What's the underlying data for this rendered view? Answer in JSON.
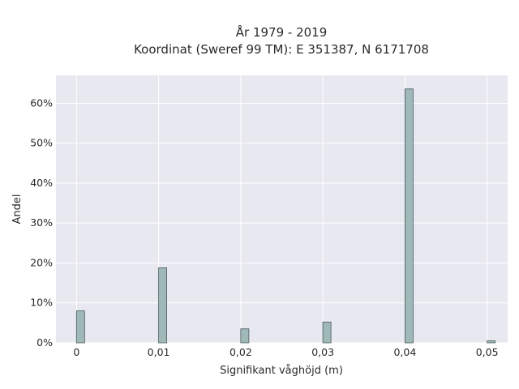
{
  "chart_data": {
    "type": "bar",
    "title": "År 1979 - 2019",
    "subtitle": "Koordinat (Sweref 99 TM): E 351387, N 6171708",
    "xlabel": "Signifikant våghöjd (m)",
    "ylabel": "Andel",
    "x": [
      0,
      0.01,
      0.02,
      0.03,
      0.04,
      0.05
    ],
    "values": [
      8.0,
      18.8,
      3.5,
      5.2,
      63.6,
      0.5
    ],
    "xticks": [
      0,
      0.01,
      0.02,
      0.03,
      0.04,
      0.05
    ],
    "xtick_labels": [
      "0",
      "0,01",
      "0,02",
      "0,03",
      "0,04",
      "0,05"
    ],
    "yticks": [
      0,
      10,
      20,
      30,
      40,
      50,
      60
    ],
    "ytick_labels": [
      "0%",
      "10%",
      "20%",
      "30%",
      "40%",
      "50%",
      "60%"
    ],
    "xlim": [
      -0.0025,
      0.0525
    ],
    "ylim": [
      0,
      67
    ],
    "grid": true,
    "colors": {
      "bar": "#9fb8b8",
      "bar_edge": "#4a5a5a",
      "plot_background": "#e8e8f1"
    }
  }
}
